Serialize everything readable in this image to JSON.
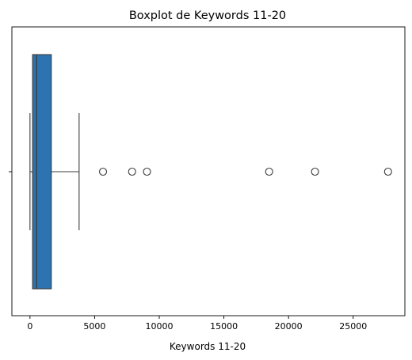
{
  "chart_data": {
    "type": "boxplot",
    "title": "Boxplot de Keywords 11-20",
    "xlabel": "Keywords 11-20",
    "ylabel": "",
    "orientation": "horizontal",
    "xlim": [
      -1400,
      29000
    ],
    "xticks": [
      0,
      5000,
      10000,
      15000,
      20000,
      25000
    ],
    "xtick_labels": [
      "0",
      "5000",
      "10000",
      "15000",
      "20000",
      "25000"
    ],
    "grid": false,
    "box": {
      "whisker_low": 0,
      "q1": 200,
      "median": 500,
      "q3": 1650,
      "whisker_high": 3800,
      "color": "#2c73b0"
    },
    "outliers": [
      5650,
      7900,
      9050,
      18500,
      22050,
      27700
    ]
  }
}
